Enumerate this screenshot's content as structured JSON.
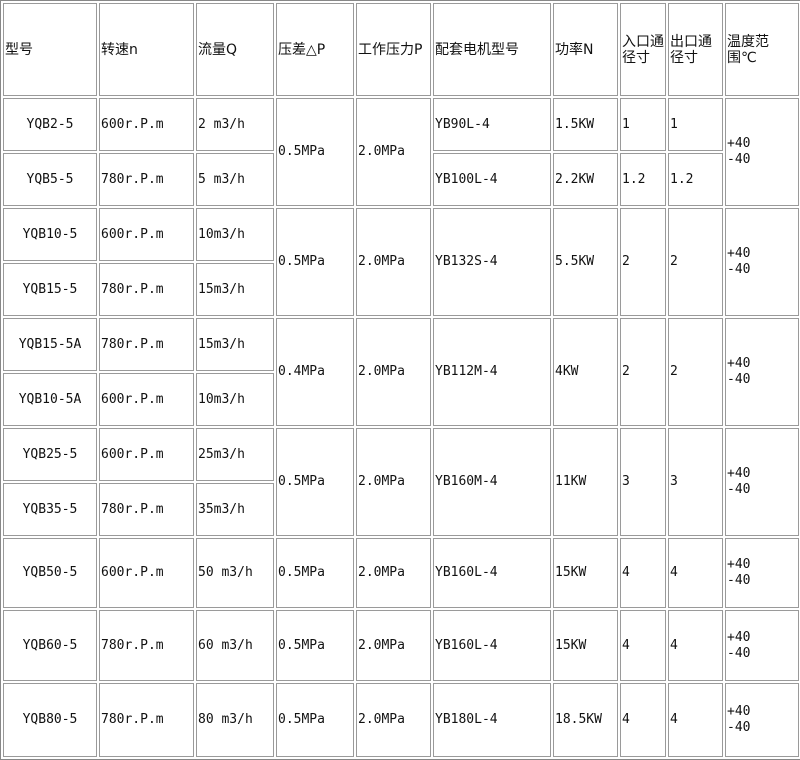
{
  "headers": [
    "型号",
    "转速n",
    "流量Q",
    "压差△P",
    "工作压力P",
    "配套电机型号",
    "功率N",
    "入口通径寸",
    "出口通径寸",
    "温度范围℃"
  ],
  "groups": [
    {
      "rows": [
        {
          "model": "YQB2-5",
          "speed": "600r.P.m",
          "flow": "2 m3/h",
          "motor": "YB90L-4",
          "power": "1.5KW",
          "inlet": "1",
          "outlet": "1"
        },
        {
          "model": "YQB5-5",
          "speed": "780r.P.m",
          "flow": "5 m3/h",
          "motor": "YB100L-4",
          "power": "2.2KW",
          "inlet": "1.2",
          "outlet": "1.2"
        }
      ],
      "dp": "0.5MPa",
      "wp": "2.0MPa",
      "temp": "+40\n-40",
      "split_motor": true
    },
    {
      "rows": [
        {
          "model": "YQB10-5",
          "speed": "600r.P.m",
          "flow": "10m3/h"
        },
        {
          "model": "YQB15-5",
          "speed": "780r.P.m",
          "flow": "15m3/h"
        }
      ],
      "dp": "0.5MPa",
      "wp": "2.0MPa",
      "motor": "YB132S-4",
      "power": "5.5KW",
      "inlet": "2",
      "outlet": "2",
      "temp": "+40\n-40"
    },
    {
      "rows": [
        {
          "model": "YQB15-5A",
          "speed": "780r.P.m",
          "flow": "15m3/h"
        },
        {
          "model": "YQB10-5A",
          "speed": "600r.P.m",
          "flow": "10m3/h"
        }
      ],
      "dp": "0.4MPa",
      "wp": "2.0MPa",
      "motor": "YB112M-4",
      "power": "4KW",
      "inlet": "2",
      "outlet": "2",
      "temp": "+40\n-40"
    },
    {
      "rows": [
        {
          "model": "YQB25-5",
          "speed": "600r.P.m",
          "flow": "25m3/h"
        },
        {
          "model": "YQB35-5",
          "speed": "780r.P.m",
          "flow": "35m3/h"
        }
      ],
      "dp": "0.5MPa",
      "wp": "2.0MPa",
      "motor": "YB160M-4",
      "power": "11KW",
      "inlet": "3",
      "outlet": "3",
      "temp": "+40\n-40"
    },
    {
      "rows": [
        {
          "model": "YQB50-5",
          "speed": "600r.P.m",
          "flow": "50 m3/h"
        }
      ],
      "dp": "0.5MPa",
      "wp": "2.0MPa",
      "motor": "YB160L-4",
      "power": "15KW",
      "inlet": "4",
      "outlet": "4",
      "temp": "+40\n-40"
    },
    {
      "rows": [
        {
          "model": "YQB60-5",
          "speed": "780r.P.m",
          "flow": "60 m3/h"
        }
      ],
      "dp": "0.5MPa",
      "wp": "2.0MPa",
      "motor": "YB160L-4",
      "power": "15KW",
      "inlet": "4",
      "outlet": "4",
      "temp": "+40\n-40"
    },
    {
      "rows": [
        {
          "model": "YQB80-5",
          "speed": "780r.P.m",
          "flow": "80 m3/h"
        }
      ],
      "dp": "0.5MPa",
      "wp": "2.0MPa",
      "motor": "YB180L-4",
      "power": "18.5KW",
      "inlet": "4",
      "outlet": "4",
      "temp": "+40\n-40"
    }
  ]
}
